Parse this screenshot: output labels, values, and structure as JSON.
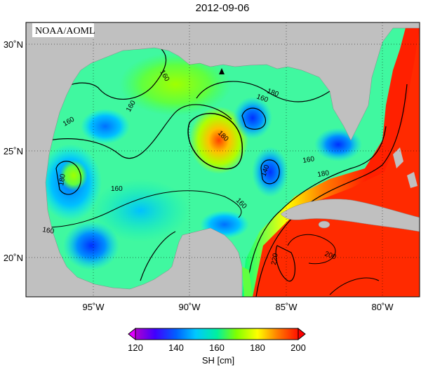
{
  "title": "2012-09-06",
  "credit": "NOAA/AOML",
  "colorbar": {
    "label": "SH [cm]",
    "ticks": [
      "120",
      "140",
      "160",
      "180",
      "200"
    ],
    "colors": [
      "#7a00c8",
      "#0000ff",
      "#0080ff",
      "#00e0ff",
      "#00ff80",
      "#80ff00",
      "#ffff00",
      "#ffa000",
      "#ff3000",
      "#e00000"
    ]
  },
  "axes": {
    "lon_labels": [
      "95˚W",
      "90˚W",
      "85˚W",
      "80˚W"
    ],
    "lat_labels": [
      "30˚N",
      "25˚N",
      "20˚N"
    ]
  },
  "contour_labels": [
    "160",
    "160",
    "160",
    "180",
    "160",
    "180",
    "140",
    "160",
    "180",
    "180",
    "160",
    "160",
    "200",
    "220",
    "160"
  ],
  "colors": {
    "land": "#c0c0c0",
    "frame": "#000000"
  }
}
